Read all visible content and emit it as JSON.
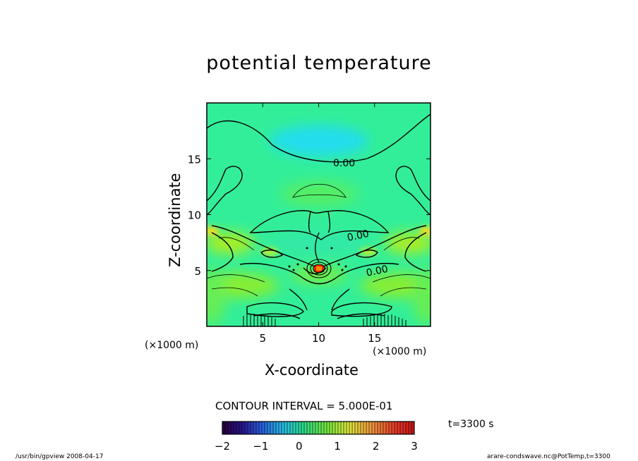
{
  "chart_data": {
    "type": "heatmap",
    "title": "potential temperature",
    "xlabel": "X-coordinate",
    "ylabel": "Z-coordinate",
    "x_unit": "(×1000 m)",
    "y_unit": "(×1000 m)",
    "xlim": [
      0,
      20
    ],
    "ylim": [
      0,
      20
    ],
    "x_ticks": [
      "5",
      "10",
      "15"
    ],
    "x_tick_values": [
      5,
      10,
      15
    ],
    "y_ticks": [
      "5",
      "10",
      "15"
    ],
    "y_tick_values": [
      5,
      10,
      15
    ],
    "contour_labels": [
      "0.00",
      "0.00",
      "0.00"
    ],
    "contour_interval_text": "CONTOUR INTERVAL = 5.000E-01",
    "colorbar": {
      "min": -2,
      "max": 3,
      "ticks": [
        "−2",
        "−1",
        "0",
        "1",
        "2",
        "3"
      ],
      "tick_values": [
        -2,
        -1,
        0,
        1,
        2,
        3
      ]
    }
  },
  "annotations": {
    "time": "t=3300 s",
    "footer_left": "/usr/bin/gpview   2008-04-17",
    "footer_right": "arare-condswave.nc@PotTemp,t=3300"
  },
  "colors": {
    "background_field": "#33ee99",
    "cool_anomaly": "#22ddee",
    "warm_band": "#99ee33",
    "max_anomaly": "#ee2200"
  }
}
